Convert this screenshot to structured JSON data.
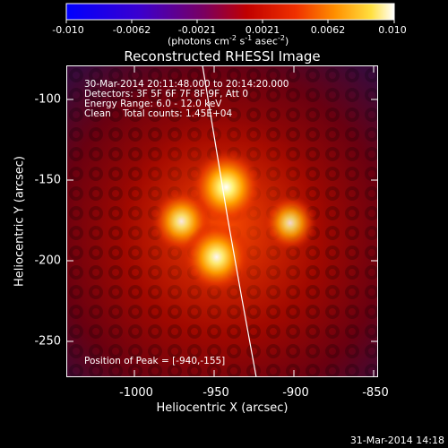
{
  "colorbar": {
    "ticks": [
      "-0.010",
      "-0.0062",
      "-0.0021",
      "0.0021",
      "0.0062",
      "0.010"
    ],
    "units_label": "(photons cm",
    "units_exp1": "-2",
    "units_mid": " s",
    "units_exp2": "-1",
    "units_mid2": " asec",
    "units_exp3": "-2",
    "units_close": ")"
  },
  "chart_data": {
    "type": "heatmap",
    "title": "Reconstructed RHESSI Image",
    "xlabel": "Heliocentric X (arcsec)",
    "ylabel": "Heliocentric Y (arcsec)",
    "xlim": [
      -1040,
      -845
    ],
    "ylim": [
      -272,
      -80
    ],
    "x_ticks": [
      "-1000",
      "-950",
      "-900",
      "-850"
    ],
    "y_ticks": [
      "-100",
      "-150",
      "-200",
      "-250"
    ],
    "colorbar_range": [
      -0.01,
      0.01
    ],
    "sources": [
      {
        "x": -940,
        "y": -155,
        "intensity": 1.0
      },
      {
        "x": -968,
        "y": -176,
        "intensity": 0.75
      },
      {
        "x": -900,
        "y": -177,
        "intensity": 0.6
      },
      {
        "x": -946,
        "y": -198,
        "intensity": 0.9
      }
    ],
    "annotations": [
      "30-Mar-2014 20:11:48.000 to 20:14:20.000",
      "Detectors: 3F 5F 6F 7F 8F 9F, Att 0",
      "Energy Range: 6.0 - 12.0 keV",
      "Clean    Total counts: 1.45E+04",
      "Position of Peak = [-940,-155]"
    ]
  },
  "footer": {
    "timestamp": "31-Mar-2014 14:18"
  }
}
